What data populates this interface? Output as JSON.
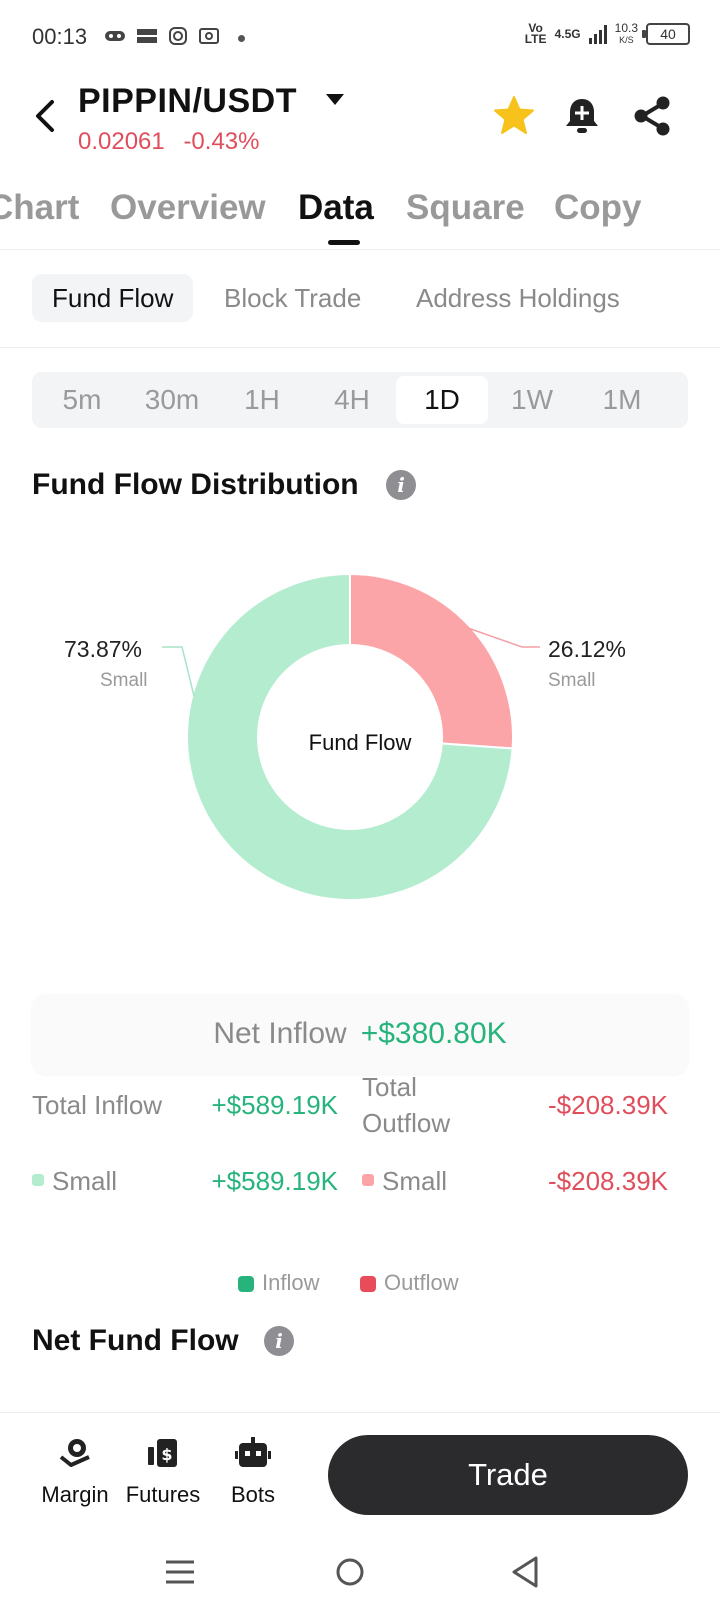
{
  "status_bar": {
    "time": "00:13",
    "network": "4.5G",
    "volte": "Vo LTE",
    "speed_value": "10.3",
    "speed_unit": "K/S",
    "battery": "40"
  },
  "header": {
    "pair": "PIPPIN/USDT",
    "price": "0.02061",
    "change": "-0.43%",
    "colors": {
      "down": "#e04e5c",
      "star": "#f6c21b"
    }
  },
  "tabs": [
    "Chart",
    "Overview",
    "Data",
    "Square",
    "Copy"
  ],
  "active_tab": "Data",
  "subtabs": [
    "Fund Flow",
    "Block Trade",
    "Address Holdings"
  ],
  "active_subtab": "Fund Flow",
  "intervals": [
    "5m",
    "30m",
    "1H",
    "4H",
    "1D",
    "1W",
    "1M"
  ],
  "active_interval": "1D",
  "distribution": {
    "title": "Fund Flow Distribution",
    "center_label": "Fund Flow",
    "left_pct": "73.87%",
    "left_sub": "Small",
    "right_pct": "26.12%",
    "right_sub": "Small"
  },
  "chart_data": {
    "type": "pie",
    "categories": [
      "Small (Inflow)",
      "Small (Outflow)"
    ],
    "values": [
      73.87,
      26.12
    ],
    "colors": [
      "#b4ecd0",
      "#fca5a8"
    ]
  },
  "net_inflow": {
    "label": "Net Inflow",
    "value": "+$380.80K"
  },
  "totals": {
    "inflow_label": "Total Inflow",
    "inflow_value": "+$589.19K",
    "outflow_label_1": "Total",
    "outflow_label_2": "Outflow",
    "outflow_value": "-$208.39K",
    "small_in_label": "Small",
    "small_in_value": "+$589.19K",
    "small_out_label": "Small",
    "small_out_value": "-$208.39K"
  },
  "legend": {
    "inflow": "Inflow",
    "outflow": "Outflow",
    "inflow_color": "#27b47c",
    "outflow_color": "#e84b5a"
  },
  "net_fund_flow": {
    "title": "Net Fund Flow"
  },
  "bottom_bar": {
    "margin": "Margin",
    "futures": "Futures",
    "bots": "Bots",
    "trade": "Trade"
  }
}
